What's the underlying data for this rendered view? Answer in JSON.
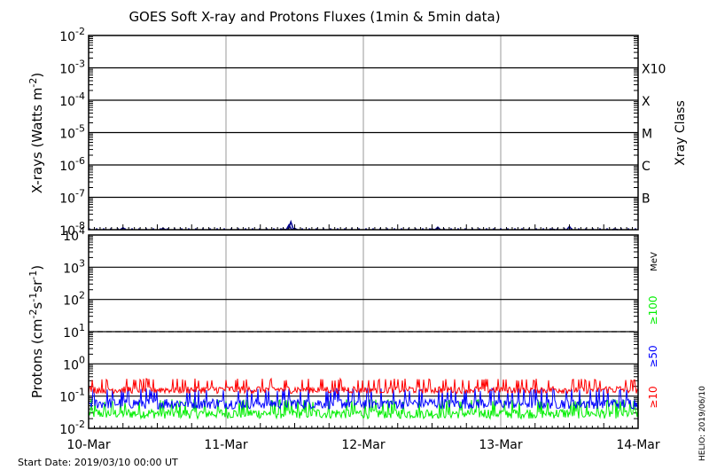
{
  "chart_data": [
    {
      "type": "line",
      "title": "GOES Soft X-ray and Protons Fluxes   (1min & 5min data)",
      "ylabel": "X-rays (Watts m-2)",
      "ylabel_parts": {
        "main": "X-rays (Watts m",
        "sup": "-2",
        "end": ")"
      },
      "yscale": "log",
      "ylim": [
        1e-08,
        0.01
      ],
      "yticks": [
        {
          "base": "10",
          "exp": "-8"
        },
        {
          "base": "10",
          "exp": "-7"
        },
        {
          "base": "10",
          "exp": "-6"
        },
        {
          "base": "10",
          "exp": "-5"
        },
        {
          "base": "10",
          "exp": "-4"
        },
        {
          "base": "10",
          "exp": "-3"
        },
        {
          "base": "10",
          "exp": "-2"
        }
      ],
      "right_labels": {
        "title": "Xray Class",
        "classes": [
          "B",
          "C",
          "M",
          "X",
          "X10"
        ]
      },
      "xlim": [
        "2019-03-10",
        "2019-03-14"
      ],
      "x_grid": [
        "2019-03-11",
        "2019-03-12",
        "2019-03-13"
      ],
      "series": [
        {
          "color": "#00008b",
          "x": [
            "2019-03-10 06:00",
            "2019-03-10 13:00",
            "2019-03-11 10:00",
            "2019-03-11 11:00",
            "2019-03-11 11:20",
            "2019-03-11 12:00",
            "2019-03-12 12:00",
            "2019-03-12 13:00",
            "2019-03-13 09:00",
            "2019-03-13 12:00",
            "2019-03-13 20:00"
          ],
          "y": [
            1.15e-08,
            1.1e-08,
            1.05e-08,
            1.4e-08,
            1.75e-08,
            1.1e-08,
            1.05e-08,
            1.2e-08,
            1.05e-08,
            1.25e-08,
            1.05e-08
          ]
        }
      ]
    },
    {
      "type": "line",
      "ylabel_parts": {
        "main": "Protons (cm",
        "sup1": "-2",
        "mid1": "s",
        "sup2": "-1",
        "mid2": "sr",
        "sup3": "-1",
        "end": ")"
      },
      "yscale": "log",
      "ylim": [
        0.01,
        10000
      ],
      "yticks": [
        {
          "base": "10",
          "exp": "-2"
        },
        {
          "base": "10",
          "exp": "-1"
        },
        {
          "base": "10",
          "exp": "0"
        },
        {
          "base": "10",
          "exp": "1"
        },
        {
          "base": "10",
          "exp": "2"
        },
        {
          "base": "10",
          "exp": "3"
        },
        {
          "base": "10",
          "exp": "4"
        }
      ],
      "threshold": 10,
      "xlim": [
        "2019-03-10",
        "2019-03-14"
      ],
      "x_grid": [
        "2019-03-11",
        "2019-03-12",
        "2019-03-13"
      ],
      "xticks": [
        "10-Mar",
        "11-Mar",
        "12-Mar",
        "13-Mar",
        "14-Mar"
      ],
      "energy_unit": "MeV",
      "series": [
        {
          "name": "≥10",
          "color": "#ff0000",
          "level": 0.17,
          "low": 0.12,
          "high": 0.35
        },
        {
          "name": "≥50",
          "color": "#0000ff",
          "level": 0.07,
          "low": 0.04,
          "high": 0.18
        },
        {
          "name": "≥100",
          "color": "#00ee00",
          "level": 0.035,
          "low": 0.02,
          "high": 0.08
        }
      ]
    }
  ],
  "footer": {
    "start_date": "Start Date: 2019/03/10 00:00 UT",
    "helio": "HELIO: 2019/06/10"
  }
}
